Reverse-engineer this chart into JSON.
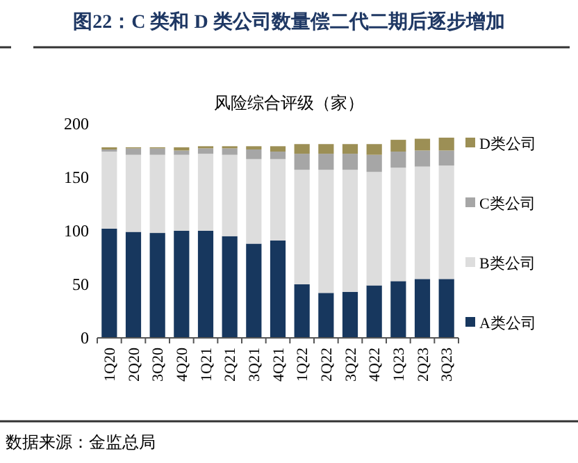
{
  "chart_data": {
    "type": "bar",
    "stacked": true,
    "title": "图22：C 类和 D 类公司数量偿二代二期后逐步增加",
    "subtitle": "风险综合评级（家）",
    "categories": [
      "1Q20",
      "2Q20",
      "3Q20",
      "4Q20",
      "1Q21",
      "2Q21",
      "3Q21",
      "4Q21",
      "1Q22",
      "2Q22",
      "3Q22",
      "4Q22",
      "1Q23",
      "2Q23",
      "3Q23"
    ],
    "series": [
      {
        "name": "A类公司",
        "color": "#17375e",
        "values": [
          102,
          99,
          98,
          100,
          100,
          95,
          88,
          91,
          50,
          42,
          43,
          49,
          53,
          55,
          55
        ]
      },
      {
        "name": "B类公司",
        "color": "#dddddd",
        "values": [
          72,
          72,
          73,
          71,
          72,
          76,
          79,
          76,
          107,
          115,
          114,
          106,
          106,
          105,
          106
        ]
      },
      {
        "name": "C类公司",
        "color": "#a6a6a6",
        "values": [
          2,
          6,
          6,
          4,
          5,
          6,
          9,
          7,
          15,
          15,
          15,
          16,
          15,
          15,
          14
        ]
      },
      {
        "name": "D类公司",
        "color": "#9c8f55",
        "values": [
          2,
          1,
          1,
          3,
          2,
          2,
          3,
          5,
          9,
          9,
          9,
          10,
          11,
          11,
          12
        ]
      }
    ],
    "ylim": [
      0,
      200
    ],
    "yticks": [
      0,
      50,
      100,
      150,
      200
    ],
    "legend": "right",
    "grid": false,
    "annotations": [
      "数据来源：金监总局"
    ]
  }
}
